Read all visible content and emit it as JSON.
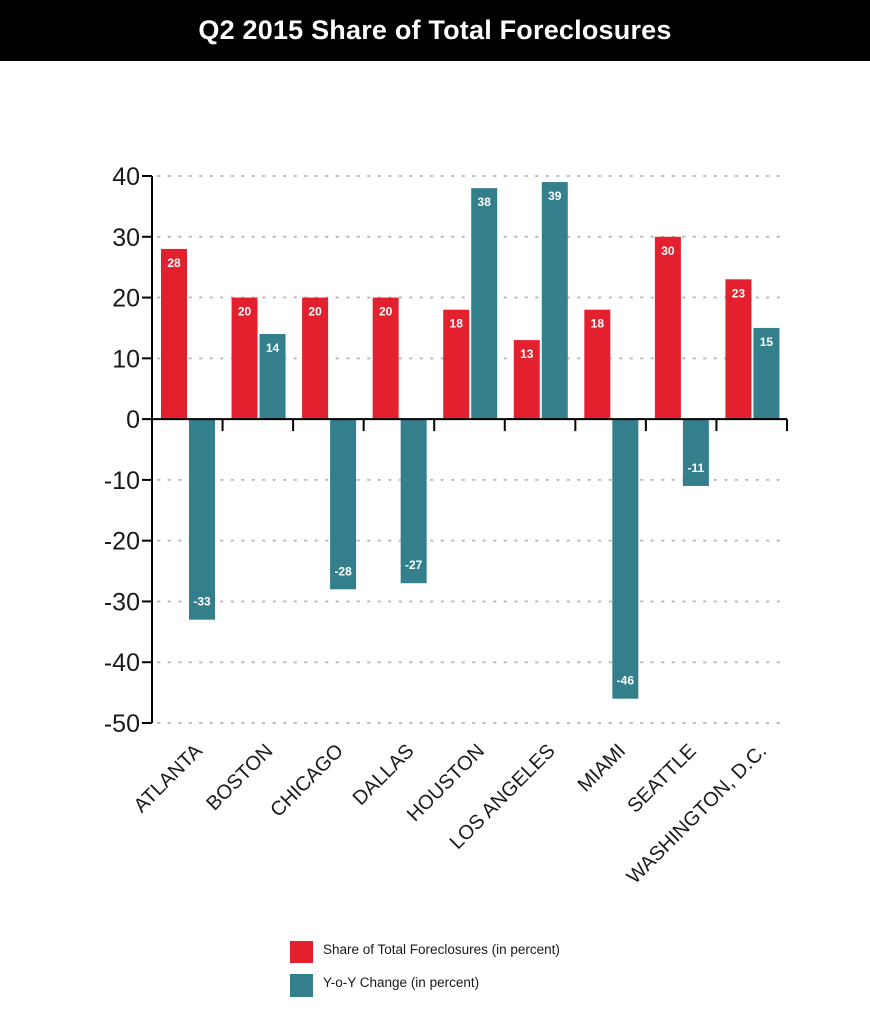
{
  "colors": {
    "share": "#e3202d",
    "yoy": "#337f8c",
    "axis": "#000000",
    "grid": "#bbbbbb"
  },
  "chart_data": {
    "type": "bar",
    "title": "Q2 2015 Share of Total Foreclosures",
    "categories": [
      "ATLANTA",
      "BOSTON",
      "CHICAGO",
      "DALLAS",
      "HOUSTON",
      "LOS ANGELES",
      "MIAMI",
      "SEATTLE",
      "WASHINGTON, D.C."
    ],
    "series": [
      {
        "name": "Share of Total Foreclosures (in percent)",
        "values": [
          28,
          20,
          20,
          20,
          18,
          13,
          18,
          30,
          23
        ]
      },
      {
        "name": "Y-o-Y Change (in percent)",
        "values": [
          -33,
          14,
          -28,
          -27,
          38,
          39,
          -46,
          -11,
          15
        ]
      }
    ],
    "ylim": [
      -50,
      40
    ],
    "yticks": [
      "40",
      "30",
      "20",
      "10",
      "0",
      "-10",
      "-20",
      "-30",
      "-40",
      "-50"
    ],
    "grid": "dotted horizontal",
    "legend": "bottom"
  }
}
